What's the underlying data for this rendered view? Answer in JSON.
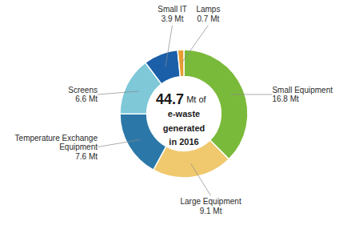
{
  "chart_data": {
    "type": "pie",
    "categories": [
      "Small Equipment",
      "Large Equipment",
      "Temperature Exchange Equipment",
      "Screens",
      "Small IT",
      "Lamps"
    ],
    "values": [
      16.8,
      9.1,
      7.6,
      6.6,
      3.9,
      0.7
    ],
    "value_labels": [
      "16.8 Mt",
      "9.1 Mt",
      "7.6 Mt",
      "6.6 Mt",
      "3.9 Mt",
      "0.7 Mt"
    ],
    "colors": [
      "#7aba3a",
      "#f0c96e",
      "#2b78a8",
      "#7ec8d8",
      "#1b5fa8",
      "#e89c2f"
    ],
    "annotations": [
      "44.7",
      "Mt of",
      "e-waste",
      "generated",
      "in 2016"
    ],
    "data_labels": true
  }
}
